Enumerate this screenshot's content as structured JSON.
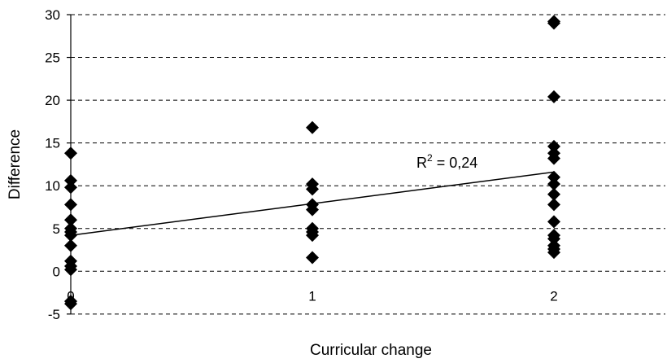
{
  "chart_data": {
    "type": "scatter",
    "title": "",
    "xlabel": "Curricular change",
    "ylabel": "Difference",
    "xlim": [
      0,
      2.5
    ],
    "ylim": [
      -5,
      30
    ],
    "x_ticks": [
      "0",
      "1",
      "2"
    ],
    "y_ticks": [
      "-5",
      "0",
      "5",
      "10",
      "15",
      "20",
      "25",
      "30"
    ],
    "grid": "horizontal dashed",
    "marker": "black diamond",
    "series": [
      {
        "points": [
          [
            0,
            13.8
          ],
          [
            0,
            10.6
          ],
          [
            0,
            9.8
          ],
          [
            0,
            7.8
          ],
          [
            0,
            6.0
          ],
          [
            0,
            5.0
          ],
          [
            0,
            4.6
          ],
          [
            0,
            4.2
          ],
          [
            0,
            3.0
          ],
          [
            0,
            1.2
          ],
          [
            0,
            0.6
          ],
          [
            0,
            0.2
          ],
          [
            0,
            -3.5
          ],
          [
            0,
            -3.8
          ],
          [
            1,
            16.8
          ],
          [
            1,
            10.2
          ],
          [
            1,
            9.6
          ],
          [
            1,
            7.8
          ],
          [
            1,
            7.2
          ],
          [
            1,
            5.0
          ],
          [
            1,
            4.6
          ],
          [
            1,
            4.2
          ],
          [
            1,
            1.6
          ],
          [
            2,
            29.2
          ],
          [
            2,
            29.0
          ],
          [
            2,
            20.4
          ],
          [
            2,
            14.6
          ],
          [
            2,
            13.8
          ],
          [
            2,
            13.2
          ],
          [
            2,
            11.0
          ],
          [
            2,
            10.2
          ],
          [
            2,
            9.0
          ],
          [
            2,
            7.8
          ],
          [
            2,
            5.8
          ],
          [
            2,
            4.2
          ],
          [
            2,
            3.8
          ],
          [
            2,
            3.0
          ],
          [
            2,
            2.6
          ],
          [
            2,
            2.2
          ]
        ]
      }
    ],
    "trendline": {
      "type": "linear",
      "intercept": 4.2,
      "slope": 3.7
    },
    "annotations": [
      {
        "text": "R",
        "sup": "2",
        "rest": " = 0,24"
      }
    ],
    "colors": {
      "marker": "#000000",
      "line": "#000000",
      "grid": "#000000"
    }
  }
}
